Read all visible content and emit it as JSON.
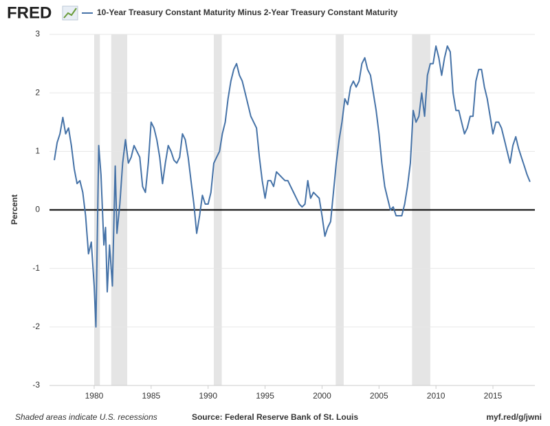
{
  "chart_data": {
    "type": "line",
    "logo": "FRED",
    "y_label": "Percent",
    "footer_left": "Shaded areas indicate U.S. recessions",
    "footer_center": "Source: Federal Reserve Bank of St. Louis",
    "footer_right": "myf.red/g/jwni",
    "xlim": [
      1976.08,
      2018.68
    ],
    "ylim": [
      -3,
      3
    ],
    "xticks": [
      1980,
      1985,
      1990,
      1995,
      2000,
      2005,
      2010,
      2015
    ],
    "yticks": [
      -3,
      -2,
      -1,
      0,
      1,
      2,
      3
    ],
    "grid": true,
    "zero_line": true,
    "recession_color": "#e5e5e5",
    "recessions": [
      {
        "start": 1980.0,
        "end": 1980.5
      },
      {
        "start": 1981.5,
        "end": 1982.9
      },
      {
        "start": 1990.5,
        "end": 1991.2
      },
      {
        "start": 2001.2,
        "end": 2001.9
      },
      {
        "start": 2007.9,
        "end": 2009.5
      }
    ],
    "x": [
      1976.5,
      1976.75,
      1977,
      1977.25,
      1977.5,
      1977.75,
      1978,
      1978.25,
      1978.5,
      1978.75,
      1979,
      1979.25,
      1979.5,
      1979.75,
      1980,
      1980.15,
      1980.4,
      1980.6,
      1980.85,
      1981,
      1981.15,
      1981.35,
      1981.6,
      1981.85,
      1982,
      1982.25,
      1982.5,
      1982.75,
      1983,
      1983.25,
      1983.5,
      1983.75,
      1984,
      1984.25,
      1984.5,
      1984.75,
      1985,
      1985.25,
      1985.5,
      1985.75,
      1986,
      1986.25,
      1986.5,
      1986.75,
      1987,
      1987.25,
      1987.5,
      1987.75,
      1988,
      1988.25,
      1988.5,
      1988.75,
      1989,
      1989.25,
      1989.5,
      1989.75,
      1990,
      1990.25,
      1990.5,
      1990.75,
      1991,
      1991.25,
      1991.5,
      1991.75,
      1992,
      1992.25,
      1992.5,
      1992.75,
      1993,
      1993.25,
      1993.5,
      1993.75,
      1994,
      1994.25,
      1994.5,
      1994.75,
      1995,
      1995.25,
      1995.5,
      1995.75,
      1996,
      1996.25,
      1996.5,
      1996.75,
      1997,
      1997.25,
      1997.5,
      1997.75,
      1998,
      1998.25,
      1998.5,
      1998.75,
      1999,
      1999.25,
      1999.5,
      1999.75,
      2000,
      2000.25,
      2000.5,
      2000.75,
      2001,
      2001.25,
      2001.5,
      2001.75,
      2002,
      2002.25,
      2002.5,
      2002.75,
      2003,
      2003.25,
      2003.5,
      2003.75,
      2004,
      2004.25,
      2004.5,
      2004.75,
      2005,
      2005.25,
      2005.5,
      2005.75,
      2006,
      2006.25,
      2006.5,
      2006.75,
      2007,
      2007.25,
      2007.5,
      2007.75,
      2008,
      2008.25,
      2008.5,
      2008.75,
      2009,
      2009.25,
      2009.5,
      2009.75,
      2010,
      2010.25,
      2010.5,
      2010.75,
      2011,
      2011.25,
      2011.5,
      2011.75,
      2012,
      2012.25,
      2012.5,
      2012.75,
      2013,
      2013.25,
      2013.5,
      2013.75,
      2014,
      2014.25,
      2014.5,
      2014.75,
      2015,
      2015.25,
      2015.5,
      2015.75,
      2016,
      2016.25,
      2016.5,
      2016.75,
      2017,
      2017.25,
      2017.5,
      2017.75,
      2018,
      2018.25
    ],
    "series": [
      {
        "name": "10-Year Treasury Constant Maturity Minus 2-Year Treasury Constant Maturity",
        "color": "#4572a7",
        "values": [
          0.85,
          1.15,
          1.3,
          1.58,
          1.3,
          1.4,
          1.1,
          0.7,
          0.45,
          0.5,
          0.3,
          -0.1,
          -0.75,
          -0.55,
          -1.3,
          -2.0,
          1.1,
          0.6,
          -0.6,
          -0.3,
          -1.4,
          -0.6,
          -1.3,
          0.75,
          -0.4,
          0.1,
          0.8,
          1.2,
          0.8,
          0.9,
          1.1,
          1.0,
          0.9,
          0.4,
          0.3,
          0.8,
          1.5,
          1.4,
          1.2,
          0.9,
          0.45,
          0.8,
          1.1,
          1.0,
          0.85,
          0.8,
          0.9,
          1.3,
          1.2,
          0.9,
          0.5,
          0.1,
          -0.4,
          -0.1,
          0.25,
          0.1,
          0.1,
          0.3,
          0.8,
          0.9,
          1.0,
          1.3,
          1.5,
          1.9,
          2.2,
          2.4,
          2.5,
          2.3,
          2.2,
          2.0,
          1.8,
          1.6,
          1.5,
          1.4,
          0.9,
          0.5,
          0.2,
          0.5,
          0.5,
          0.4,
          0.65,
          0.6,
          0.55,
          0.5,
          0.5,
          0.4,
          0.3,
          0.2,
          0.1,
          0.05,
          0.1,
          0.5,
          0.2,
          0.3,
          0.25,
          0.2,
          -0.1,
          -0.45,
          -0.3,
          -0.2,
          0.3,
          0.8,
          1.2,
          1.5,
          1.9,
          1.8,
          2.1,
          2.2,
          2.1,
          2.2,
          2.5,
          2.6,
          2.4,
          2.3,
          2.0,
          1.7,
          1.3,
          0.8,
          0.4,
          0.2,
          0.0,
          0.05,
          -0.1,
          -0.1,
          -0.1,
          0.1,
          0.4,
          0.8,
          1.7,
          1.5,
          1.6,
          2.0,
          1.6,
          2.3,
          2.5,
          2.5,
          2.8,
          2.6,
          2.3,
          2.6,
          2.8,
          2.7,
          2.0,
          1.7,
          1.7,
          1.5,
          1.3,
          1.4,
          1.6,
          1.6,
          2.2,
          2.4,
          2.4,
          2.1,
          1.9,
          1.6,
          1.3,
          1.5,
          1.5,
          1.4,
          1.2,
          1.0,
          0.8,
          1.1,
          1.25,
          1.05,
          0.9,
          0.75,
          0.6,
          0.48
        ]
      }
    ]
  }
}
